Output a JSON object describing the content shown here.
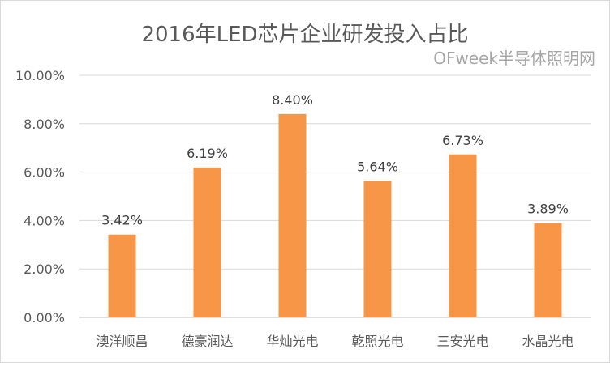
{
  "chart_data": {
    "type": "bar",
    "title": "2016年LED芯片企业研发投入占比",
    "categories": [
      "澳洋顺昌",
      "德豪润达",
      "华灿光电",
      "乾照光电",
      "三安光电",
      "水晶光电"
    ],
    "values": [
      3.42,
      6.19,
      8.4,
      5.64,
      6.73,
      3.89
    ],
    "data_labels": [
      "3.42%",
      "6.19%",
      "8.40%",
      "5.64%",
      "6.73%",
      "3.89%"
    ],
    "ylim": [
      0,
      10
    ],
    "yticks": [
      "0.00%",
      "2.00%",
      "4.00%",
      "6.00%",
      "8.00%",
      "10.00%"
    ],
    "grid": true,
    "legend": "none",
    "bar_color": "#F79646"
  },
  "watermark": "OFweek半导体照明网"
}
